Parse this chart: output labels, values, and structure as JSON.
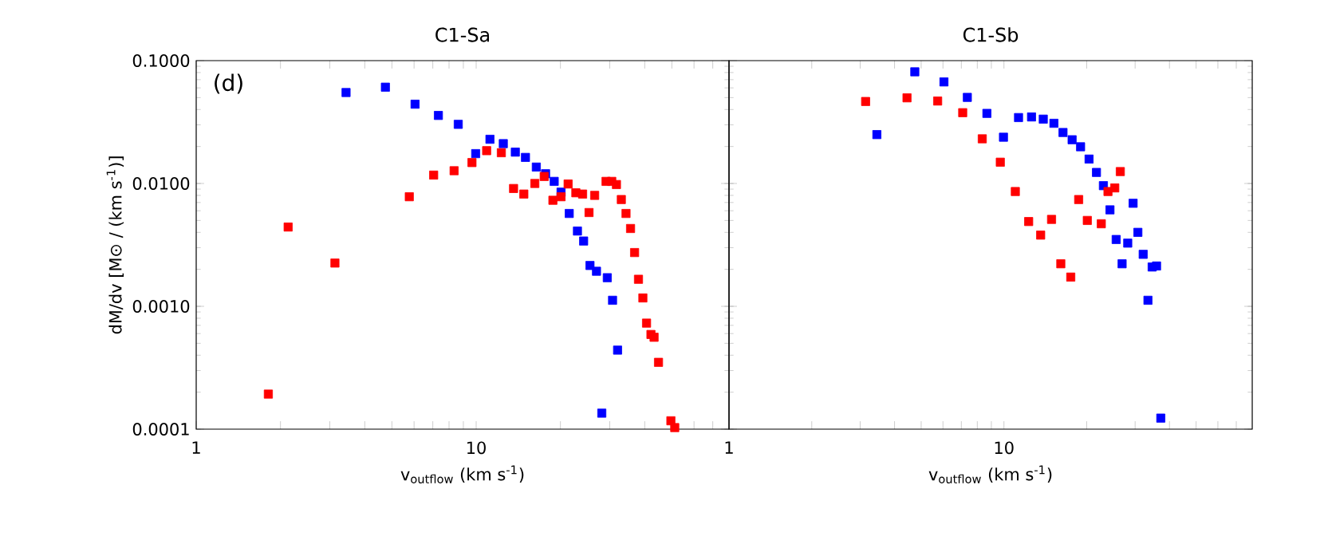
{
  "chart_data": [
    {
      "type": "scatter",
      "title": "C1-Sa",
      "xlabel": "v$_{outflow}$ (km s$^{-1}$)",
      "ylabel": "dM/dv [M⊙ / (km s$^{-1}$)]",
      "annotations": [
        "(d)"
      ],
      "log": "xy",
      "marker": "square",
      "xlim": [
        1,
        80
      ],
      "ylim": [
        0.0001,
        0.1
      ],
      "xticks": [
        1,
        {
          "value": 2,
          "label": null
        },
        {
          "value": 3,
          "label": null
        },
        {
          "value": 4,
          "label": null
        },
        {
          "value": 5,
          "label": null
        },
        {
          "value": 6,
          "label": null
        },
        {
          "value": 7,
          "label": null
        },
        {
          "value": 8,
          "label": null
        },
        {
          "value": 9,
          "label": null
        },
        10,
        {
          "value": 20,
          "label": null
        },
        {
          "value": 30,
          "label": null
        },
        {
          "value": 40,
          "label": null
        },
        {
          "value": 50,
          "label": null
        },
        {
          "value": 60,
          "label": null
        },
        {
          "value": 70,
          "label": null
        }
      ],
      "yticks": [
        {
          "value": 0.0001,
          "label": "0.0001"
        },
        {
          "value": 0.001,
          "label": "0.0010"
        },
        {
          "value": 0.01,
          "label": "0.0100"
        },
        {
          "value": 0.1,
          "label": "0.1000"
        }
      ],
      "series": [
        {
          "color": "#0000ff",
          "x": [
            3.43,
            4.74,
            6.05,
            7.33,
            8.63,
            9.96,
            11.2,
            12.5,
            13.8,
            15.0,
            16.4,
            17.7,
            19.0,
            20.1,
            21.5,
            23.0,
            24.2,
            25.5,
            26.9,
            29.4,
            30.7,
            32.0,
            28.1
          ],
          "values": [
            0.055,
            0.0608,
            0.0442,
            0.0358,
            0.0303,
            0.0175,
            0.0229,
            0.0211,
            0.018,
            0.0163,
            0.0136,
            0.012,
            0.0104,
            0.0085,
            0.0057,
            0.0041,
            0.0034,
            0.00215,
            0.00193,
            0.00171,
            0.00112,
            0.00044,
            0.000135
          ]
        },
        {
          "color": "#ff0000",
          "x": [
            1.81,
            2.13,
            3.13,
            5.77,
            7.05,
            8.34,
            9.66,
            10.9,
            12.3,
            13.6,
            14.8,
            16.2,
            17.5,
            18.8,
            20.1,
            21.3,
            22.7,
            24.0,
            25.3,
            26.5,
            29.1,
            30.5,
            31.7,
            33.0,
            34.3,
            35.6,
            36.8,
            38.0,
            39.4,
            40.6,
            42.1,
            43.2,
            44.8,
            49.6,
            51.2
          ],
          "values": [
            0.000193,
            0.00442,
            0.00225,
            0.0078,
            0.0117,
            0.0127,
            0.0148,
            0.0185,
            0.0178,
            0.0091,
            0.0082,
            0.01,
            0.0114,
            0.0073,
            0.0078,
            0.0099,
            0.0084,
            0.0082,
            0.0058,
            0.008,
            0.0104,
            0.0104,
            0.0098,
            0.0074,
            0.0057,
            0.0043,
            0.00274,
            0.00166,
            0.00117,
            0.00073,
            0.00059,
            0.00056,
            0.00035,
            0.000117,
            0.000103
          ]
        }
      ]
    },
    {
      "type": "scatter",
      "title": "C1-Sb",
      "xlabel": "v$_{outflow}$ (km s$^{-1}$)",
      "log": "xy",
      "marker": "square",
      "tick_labels": "x",
      "xlim": [
        1,
        80
      ],
      "ylim": [
        0.0001,
        0.1
      ],
      "xticks": [
        1,
        {
          "value": 2,
          "label": null
        },
        {
          "value": 3,
          "label": null
        },
        {
          "value": 4,
          "label": null
        },
        {
          "value": 5,
          "label": null
        },
        {
          "value": 6,
          "label": null
        },
        {
          "value": 7,
          "label": null
        },
        {
          "value": 8,
          "label": null
        },
        {
          "value": 9,
          "label": null
        },
        10,
        {
          "value": 20,
          "label": null
        },
        {
          "value": 30,
          "label": null
        },
        {
          "value": 40,
          "label": null
        },
        {
          "value": 50,
          "label": null
        },
        {
          "value": 60,
          "label": null
        },
        {
          "value": 70,
          "label": null
        }
      ],
      "yticks": [
        {
          "value": 0.0001,
          "label": null
        },
        {
          "value": 0.001,
          "label": null
        },
        {
          "value": 0.01,
          "label": null
        },
        {
          "value": 0.1,
          "label": null
        }
      ],
      "series": [
        {
          "color": "#0000ff",
          "x": [
            3.45,
            4.74,
            6.05,
            7.36,
            8.67,
            9.96,
            11.3,
            12.6,
            13.9,
            15.2,
            16.4,
            17.7,
            19.0,
            20.4,
            21.7,
            23.0,
            24.3,
            25.6,
            26.9,
            28.2,
            29.5,
            30.7,
            32.1,
            33.4,
            34.6,
            35.9,
            37.2
          ],
          "values": [
            0.025,
            0.0811,
            0.0671,
            0.0502,
            0.0372,
            0.0238,
            0.0344,
            0.0348,
            0.0334,
            0.0309,
            0.026,
            0.0227,
            0.0199,
            0.0158,
            0.0123,
            0.0096,
            0.0061,
            0.0035,
            0.00222,
            0.00327,
            0.0069,
            0.004,
            0.00265,
            0.00112,
            0.00209,
            0.00213,
            0.000123
          ]
        },
        {
          "color": "#ff0000",
          "x": [
            3.14,
            4.44,
            5.74,
            7.08,
            8.34,
            9.7,
            11.0,
            12.3,
            13.6,
            14.9,
            16.1,
            17.5,
            18.7,
            20.1,
            22.6,
            23.9,
            25.3,
            26.5
          ],
          "values": [
            0.0465,
            0.0498,
            0.0469,
            0.0377,
            0.0231,
            0.0149,
            0.0086,
            0.0049,
            0.0038,
            0.0051,
            0.00222,
            0.00173,
            0.0074,
            0.005,
            0.0047,
            0.0086,
            0.0092,
            0.0125
          ]
        }
      ]
    }
  ]
}
